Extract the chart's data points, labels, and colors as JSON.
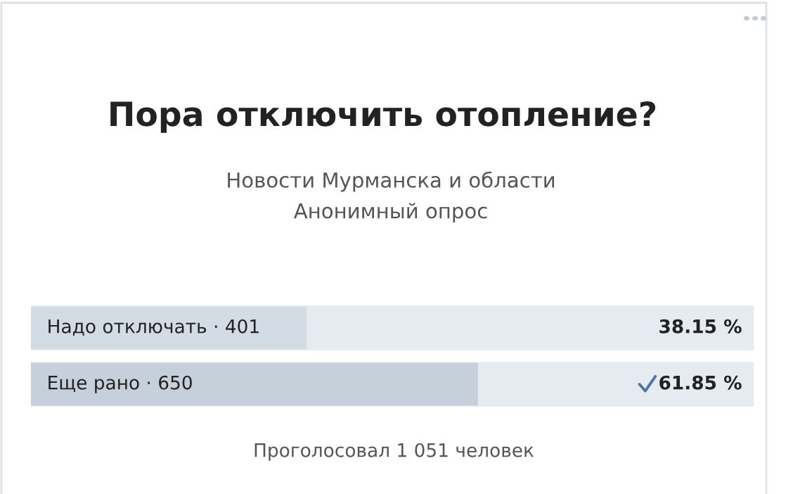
{
  "chart_data": {
    "type": "bar",
    "orientation": "horizontal",
    "title": "Пора отключить отопление?",
    "subtitle": "Новости Мурманска и области\nАнонимный опрос",
    "categories": [
      "Надо отключать · 401",
      "Еще рано · 650"
    ],
    "values": [
      38.15,
      61.85
    ],
    "colors": [
      "#d3dbe5",
      "#c5d0db"
    ],
    "value_labels": [
      "38.15 %",
      "61.85 %"
    ],
    "xlim": [
      0,
      100
    ],
    "tick_labels": false,
    "annotations": [
      "Проголосовал 1 051 человек"
    ]
  }
}
